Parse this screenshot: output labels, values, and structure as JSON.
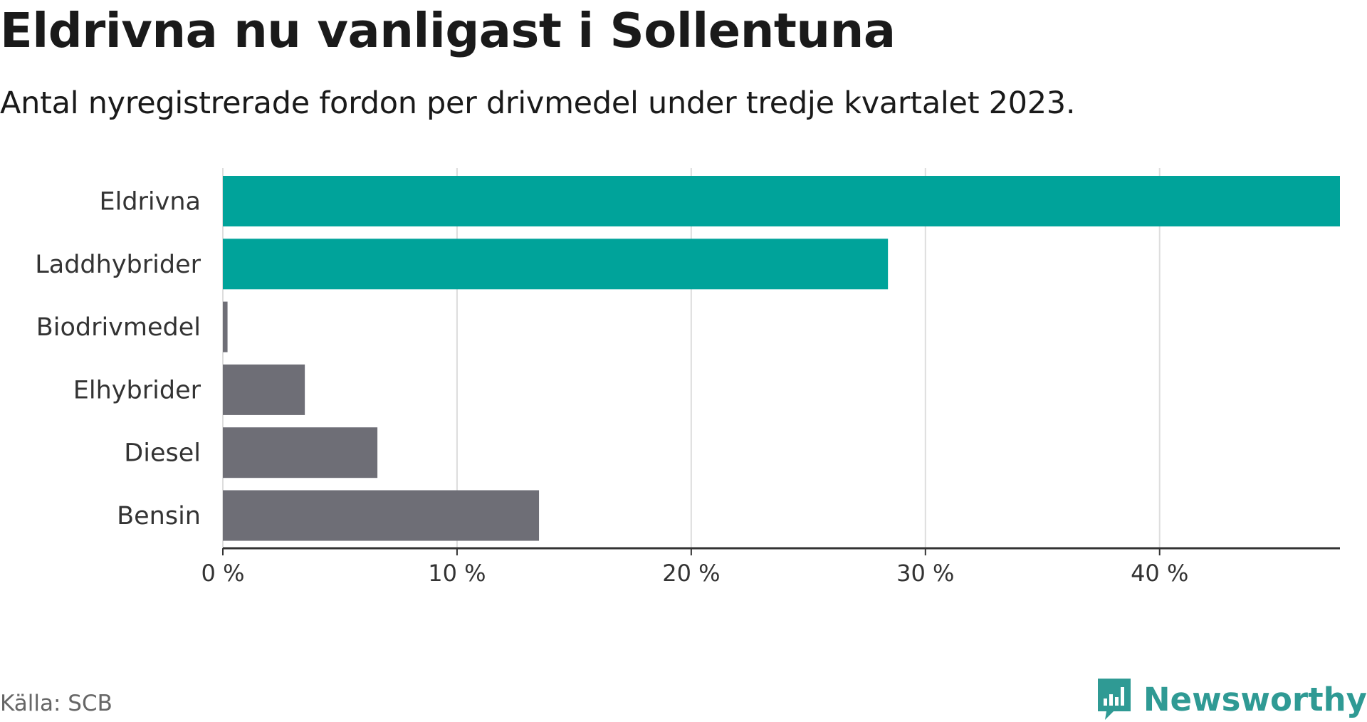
{
  "chart_data": {
    "type": "bar",
    "orientation": "horizontal",
    "title": "Eldrivna nu vanligast i Sollentuna",
    "subtitle": "Antal nyregistrerade fordon per drivmedel under tredje kvartalet 2023.",
    "categories": [
      "Eldrivna",
      "Laddhybrider",
      "Biodrivmedel",
      "Elhybrider",
      "Diesel",
      "Bensin"
    ],
    "values": [
      47.7,
      28.4,
      0.2,
      3.5,
      6.6,
      13.5
    ],
    "colors": [
      "#00a39a",
      "#00a39a",
      "#6e6e76",
      "#6e6e76",
      "#6e6e76",
      "#6e6e76"
    ],
    "xlim": [
      0,
      47.7
    ],
    "xticks": [
      0,
      10,
      20,
      30,
      40
    ],
    "xtick_labels": [
      "0 %",
      "10 %",
      "20 %",
      "30 %",
      "40 %"
    ],
    "xlabel": "",
    "ylabel": "",
    "grid": true
  },
  "footer": {
    "source": "Källa: SCB",
    "brand": "Newsworthy"
  },
  "colors": {
    "highlight": "#00a39a",
    "neutral": "#6e6e76",
    "brand": "#2f9a94",
    "grid": "#dddddd"
  }
}
